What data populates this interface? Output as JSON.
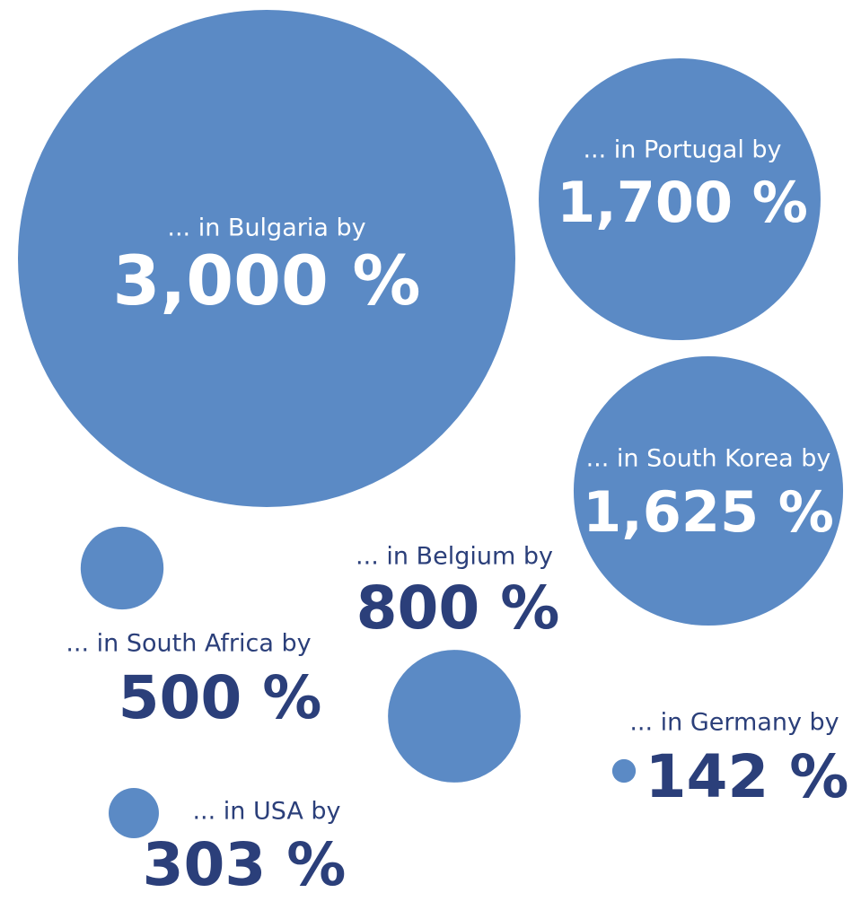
{
  "chart_data": {
    "type": "bubble",
    "categories": [
      "... in Bulgaria by",
      "... in Portugal by",
      "... in South Korea by",
      "... in Belgium by",
      "... in South Africa by",
      "... in Germany by",
      "... in USA by"
    ],
    "values": [
      3000,
      1700,
      1625,
      800,
      500,
      142,
      303
    ],
    "value_labels": [
      "3,000 %",
      "1,700 %",
      "1,625 %",
      "800 %",
      "500 %",
      "142 %",
      "303 %"
    ],
    "color": "#5b8ac5"
  }
}
